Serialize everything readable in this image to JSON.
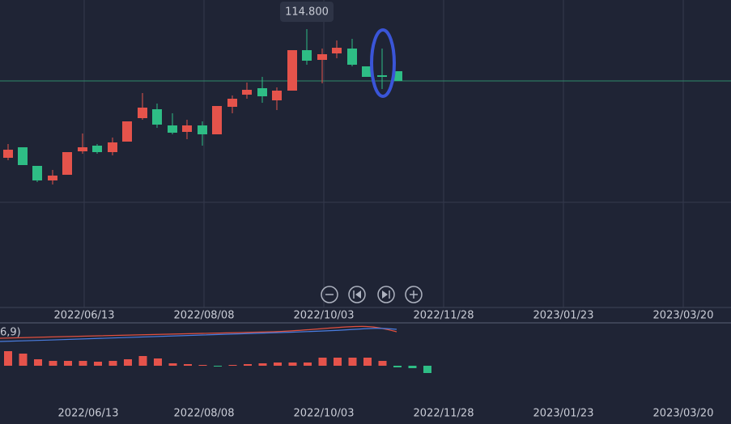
{
  "price_label": "114.800",
  "indicator_label": "6,9)",
  "top_axis_dates": [
    "2022/06/13",
    "2022/08/08",
    "2022/10/03",
    "2022/11/28",
    "2023/01/23",
    "2023/03/20"
  ],
  "bottom_axis_dates": [
    "2022/06/13",
    "2022/08/08",
    "2022/10/03",
    "2022/11/28",
    "2023/01/23",
    "2023/03/20"
  ]
}
